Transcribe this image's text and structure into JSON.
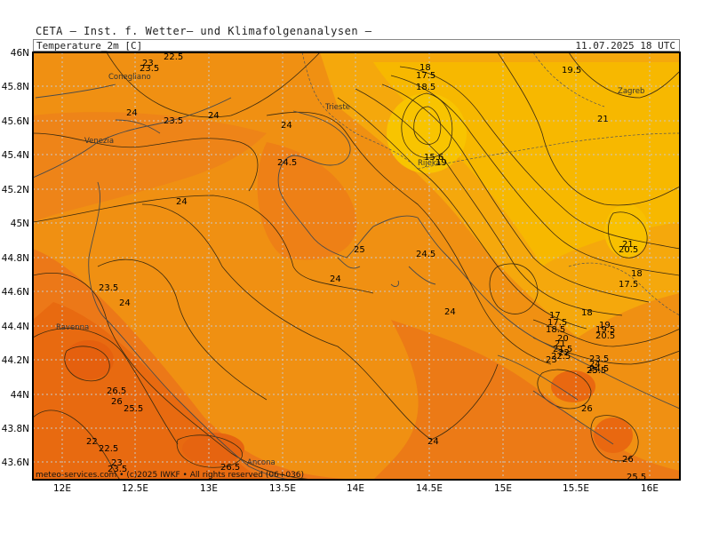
{
  "header": {
    "source": "CETA — Inst. f. Wetter— und Klimafolgenanalysen —",
    "variable": "Temperature_2m [C]",
    "datetime": "11.07.2025 18 UTC"
  },
  "footer": "meteo-services.com • (c)2025 IWKF • All rights reserved (06+036)",
  "axes": {
    "x_ticks": [
      "12E",
      "12.5E",
      "13E",
      "13.5E",
      "14E",
      "14.5E",
      "15E",
      "15.5E",
      "16E"
    ],
    "y_ticks": [
      "46N",
      "45.8N",
      "45.6N",
      "45.4N",
      "45.2N",
      "45N",
      "44.8N",
      "44.6N",
      "44.4N",
      "44.2N",
      "44N",
      "43.8N",
      "43.6N"
    ]
  },
  "cities": [
    "Conegliano",
    "Venezia",
    "Trieste",
    "Rijeka",
    "Zagreb",
    "Ravenna",
    "Ancona"
  ],
  "contour_labels": [
    "22.5",
    "23",
    "23.5",
    "24",
    "23.5",
    "24",
    "24",
    "24.5",
    "24",
    "25",
    "24.5",
    "24",
    "23.5",
    "24",
    "24",
    "24",
    "26.5",
    "26",
    "25.5",
    "22",
    "22.5",
    "23",
    "23.5",
    "26.5",
    "18",
    "17.5",
    "18.5",
    "15.6",
    "19",
    "19.5",
    "21",
    "21",
    "20.5",
    "18",
    "17.5",
    "17",
    "17.5",
    "18.5",
    "18",
    "19",
    "19.5",
    "20.5",
    "20",
    "21",
    "21.5",
    "22",
    "22.5",
    "23",
    "23.5",
    "24",
    "24.5",
    "25",
    "25.5",
    "26",
    "26",
    "25.5"
  ],
  "colors": {
    "cool_yellow": "#f7b800",
    "mid_orange": "#f29a0c",
    "warm_orange": "#ee7d16",
    "hot_orange": "#ea6a10",
    "contour": "#3a2a10",
    "grid": "#c9c9c9"
  }
}
